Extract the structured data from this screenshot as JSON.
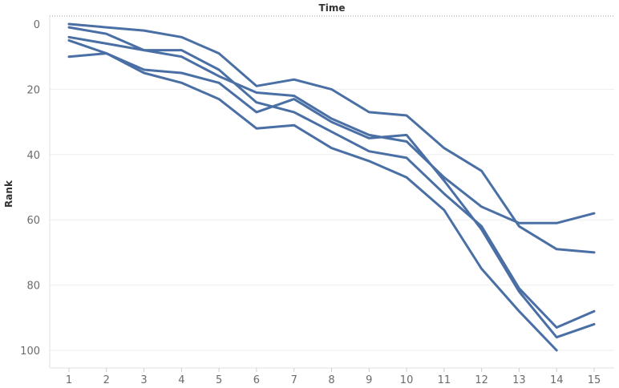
{
  "chart_data": {
    "type": "line",
    "title": "Time",
    "xlabel": "",
    "ylabel": "Rank",
    "x": [
      1,
      2,
      3,
      4,
      5,
      6,
      7,
      8,
      9,
      10,
      11,
      12,
      13,
      14,
      15
    ],
    "x_tick_labels": [
      "1",
      "2",
      "3",
      "4",
      "5",
      "6",
      "7",
      "8",
      "9",
      "10",
      "11",
      "12",
      "13",
      "14",
      "15"
    ],
    "y_tick_labels": [
      "0",
      "20",
      "40",
      "60",
      "80",
      "100"
    ],
    "y_ticks": [
      0,
      20,
      40,
      60,
      80,
      100
    ],
    "ylim": [
      0,
      106
    ],
    "y_reversed": true,
    "grid": true,
    "line_color": "#4a6fa5",
    "series": [
      {
        "values": [
          0,
          1,
          2,
          4,
          9,
          19,
          17,
          20,
          27,
          28,
          38,
          45,
          62,
          69,
          70
        ]
      },
      {
        "values": [
          1,
          3,
          8,
          10,
          16,
          21,
          22,
          29,
          34,
          36,
          47,
          56,
          61,
          61,
          58
        ]
      },
      {
        "values": [
          4,
          6,
          8,
          8,
          14,
          24,
          27,
          33,
          39,
          41,
          52,
          62,
          81,
          93,
          88
        ]
      },
      {
        "values": [
          10,
          9,
          14,
          15,
          18,
          27,
          23,
          30,
          35,
          34,
          48,
          63,
          82,
          96,
          92
        ]
      },
      {
        "values": [
          5,
          9,
          15,
          18,
          23,
          32,
          31,
          38,
          42,
          47,
          57,
          75,
          88,
          100,
          null
        ]
      }
    ]
  }
}
